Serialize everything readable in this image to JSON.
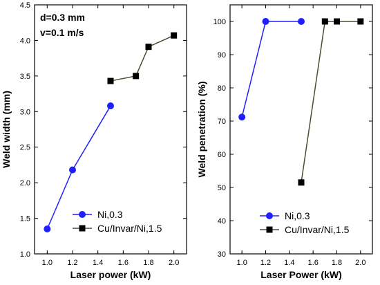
{
  "chart_data": [
    {
      "type": "line",
      "xlabel": "Laser power (kW)",
      "ylabel": "Weld width (mm)",
      "xlim": [
        0.9,
        2.1
      ],
      "ylim": [
        1.0,
        4.5
      ],
      "xticks": [
        "1.0",
        "1.2",
        "1.4",
        "1.6",
        "1.8",
        "2.0"
      ],
      "yticks": [
        "1.0",
        "1.5",
        "2.0",
        "2.5",
        "3.0",
        "3.5",
        "4.0",
        "4.5"
      ],
      "annotations": [
        "d=0.3 mm",
        "v=0.1 m/s"
      ],
      "legend_position": "bottom-right",
      "grid": false,
      "series": [
        {
          "name": "Ni,0.3",
          "color": "#1f1fff",
          "marker": "circle",
          "x": [
            1.0,
            1.2,
            1.5
          ],
          "y": [
            1.35,
            2.18,
            3.08
          ]
        },
        {
          "name": "Cu/Invar/Ni,1.5",
          "color": "#000000",
          "line_color": "#4d4d33",
          "marker": "square",
          "x": [
            1.5,
            1.7,
            1.8,
            2.0
          ],
          "y": [
            3.43,
            3.5,
            3.91,
            4.07
          ]
        }
      ]
    },
    {
      "type": "line",
      "xlabel": "Laser Power (kW)",
      "ylabel": "Weld penetration (%)",
      "xlim": [
        0.9,
        2.1
      ],
      "ylim": [
        30,
        105
      ],
      "xticks": [
        "1.0",
        "1.2",
        "1.4",
        "1.6",
        "1.8",
        "2.0"
      ],
      "yticks": [
        "30",
        "40",
        "50",
        "60",
        "70",
        "80",
        "90",
        "100"
      ],
      "legend_position": "bottom-right",
      "grid": false,
      "series": [
        {
          "name": "Ni,0.3",
          "color": "#1f1fff",
          "marker": "circle",
          "x": [
            1.0,
            1.2,
            1.5
          ],
          "y": [
            71.2,
            100,
            100
          ]
        },
        {
          "name": "Cu/Invar/Ni,1.5",
          "color": "#000000",
          "line_color": "#4d4d33",
          "marker": "square",
          "x": [
            1.5,
            1.7,
            1.8,
            2.0
          ],
          "y": [
            51.5,
            100,
            100,
            100
          ]
        }
      ]
    }
  ]
}
